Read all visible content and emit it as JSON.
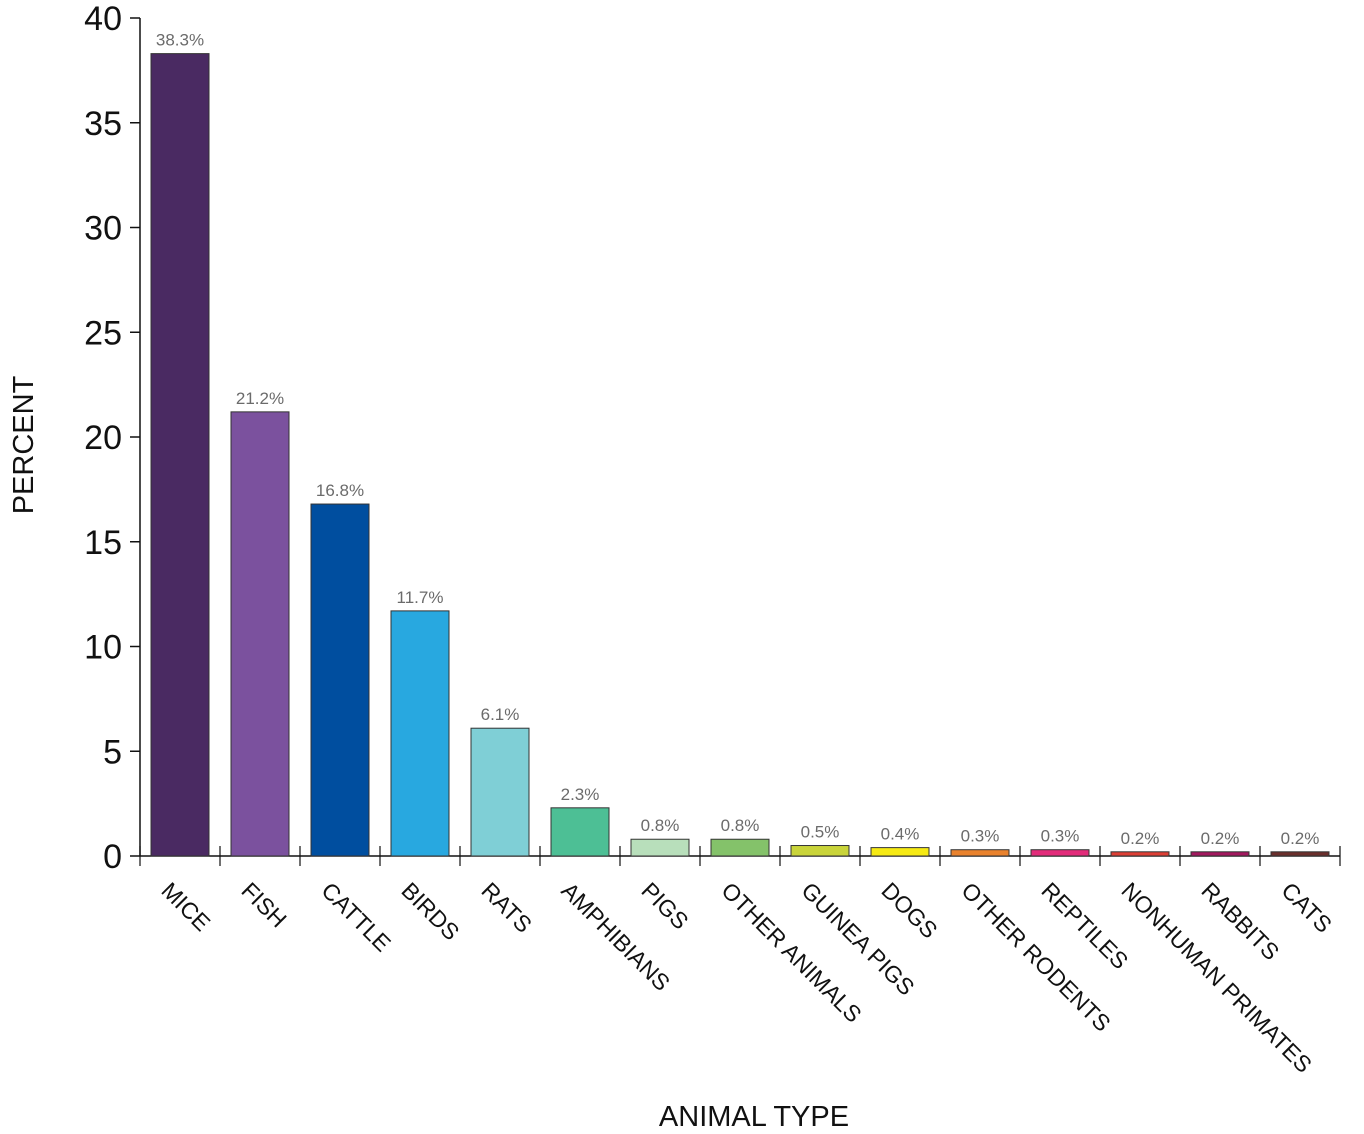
{
  "chart_data": {
    "type": "bar",
    "title": "",
    "xlabel": "ANIMAL TYPE",
    "ylabel": "PERCENT",
    "ylim": [
      0,
      40
    ],
    "yticks": [
      0,
      5,
      10,
      15,
      20,
      25,
      30,
      35,
      40
    ],
    "grid": false,
    "legend": "none",
    "categories": [
      "MICE",
      "FISH",
      "CATTLE",
      "BIRDS",
      "RATS",
      "AMPHIBIANS",
      "PIGS",
      "OTHER ANIMALS",
      "GUINEA PIGS",
      "DOGS",
      "OTHER RODENTS",
      "REPTILES",
      "NONHUMAN PRIMATES",
      "RABBITS",
      "CATS"
    ],
    "values": [
      38.3,
      21.2,
      16.8,
      11.7,
      6.1,
      2.3,
      0.8,
      0.8,
      0.5,
      0.4,
      0.3,
      0.3,
      0.2,
      0.2,
      0.2
    ],
    "data_labels": [
      "38.3%",
      "21.2%",
      "16.8%",
      "11.7%",
      "6.1%",
      "2.3%",
      "0.8%",
      "0.8%",
      "0.5%",
      "0.4%",
      "0.3%",
      "0.3%",
      "0.2%",
      "0.2%",
      "0.2%"
    ],
    "colors": [
      "#4a2a62",
      "#7b519e",
      "#004e9f",
      "#28a8e0",
      "#7fcfd6",
      "#4dbf95",
      "#b8dfbb",
      "#84c26a",
      "#c9d43a",
      "#f6ea14",
      "#e9822d",
      "#e22c7a",
      "#dd3f35",
      "#a3195f",
      "#6b2f2c"
    ]
  }
}
